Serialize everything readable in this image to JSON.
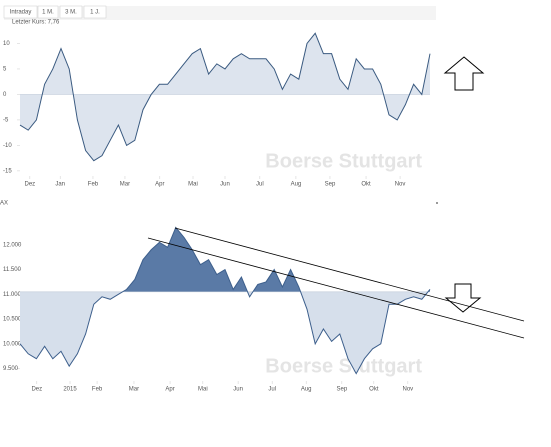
{
  "toolbar": {
    "tabs": [
      "Intraday",
      "1 M.",
      "3 M.",
      "1 J."
    ]
  },
  "chart_data": [
    {
      "type": "area",
      "subtitle": "Letzter Kurs: 7,76",
      "watermark": "Boerse Stuttgart",
      "x": [
        0,
        2,
        4,
        6,
        8,
        10,
        12,
        14,
        16,
        18,
        20,
        22,
        24,
        26,
        28,
        30,
        32,
        34,
        36,
        38,
        40,
        42,
        44,
        46,
        48,
        50,
        52,
        54,
        56,
        58,
        60,
        62,
        64,
        66,
        68,
        70,
        72,
        74,
        76,
        78,
        80,
        82,
        84,
        86,
        88,
        90,
        92,
        94,
        96,
        98,
        100
      ],
      "series": [
        {
          "color": "#3a5a80",
          "fill_above": "#dde4ee",
          "fill_below": "#dde4ee",
          "values": [
            -6,
            -7,
            -5,
            2,
            5,
            9,
            5,
            -5,
            -11,
            -13,
            -12,
            -9,
            -6,
            -10,
            -9,
            -3,
            0,
            2,
            2,
            4,
            6,
            8,
            9,
            4,
            6,
            5,
            7,
            8,
            7,
            7,
            7,
            5,
            1,
            4,
            3,
            10,
            12,
            8,
            8,
            3,
            1,
            7,
            5,
            5,
            2,
            -4,
            -5,
            -2,
            2,
            0,
            8
          ]
        }
      ],
      "baseline": 0,
      "xlim": [
        0,
        100
      ],
      "xticks": [
        {
          "value": 2.4,
          "label": "Dez"
        },
        {
          "value": 9.8,
          "label": "Jan"
        },
        {
          "value": 17.8,
          "label": "Feb"
        },
        {
          "value": 25.6,
          "label": "Mar"
        },
        {
          "value": 34.1,
          "label": "Apr"
        },
        {
          "value": 42.2,
          "label": "Mai"
        },
        {
          "value": 50,
          "label": "Jun"
        },
        {
          "value": 58.5,
          "label": "Jul"
        },
        {
          "value": 67.3,
          "label": "Aug"
        },
        {
          "value": 75.6,
          "label": "Sep"
        },
        {
          "value": 84.4,
          "label": "Okt"
        },
        {
          "value": 92.7,
          "label": "Nov"
        }
      ],
      "ylim": [
        -16,
        15
      ],
      "yticks": [
        -15,
        -10,
        -5,
        0,
        5,
        10
      ]
    },
    {
      "type": "area",
      "title": "AX",
      "watermark": "Boerse Stuttgart",
      "x": [
        0,
        2,
        4,
        6,
        8,
        10,
        12,
        14,
        16,
        18,
        20,
        22,
        24,
        26,
        28,
        30,
        32,
        34,
        36,
        38,
        40,
        42,
        44,
        46,
        48,
        50,
        52,
        54,
        56,
        58,
        60,
        62,
        64,
        66,
        68,
        70,
        72,
        74,
        76,
        78,
        80,
        82,
        84,
        86,
        88,
        90,
        92,
        94,
        96,
        98,
        100
      ],
      "series": [
        {
          "color": "#3d5f8c",
          "fill_above": "#5a7aa6",
          "fill_below": "#d6dfeb",
          "values": [
            10000,
            9800,
            9700,
            9950,
            9700,
            9850,
            9550,
            9800,
            10200,
            10800,
            10950,
            10900,
            11000,
            11100,
            11300,
            11700,
            11900,
            12050,
            11950,
            12350,
            12150,
            11900,
            11600,
            11700,
            11400,
            11500,
            11100,
            11350,
            10950,
            11200,
            11250,
            11500,
            11150,
            11500,
            11150,
            10700,
            10000,
            10300,
            10050,
            10200,
            9700,
            9400,
            9700,
            9900,
            10000,
            10800,
            10800,
            10900,
            10950,
            10900,
            11100
          ]
        }
      ],
      "baseline": 11050,
      "xlim": [
        0,
        100
      ],
      "xticks": [
        {
          "value": 4.1,
          "label": "Dez"
        },
        {
          "value": 12.2,
          "label": "2015"
        },
        {
          "value": 18.8,
          "label": "Feb"
        },
        {
          "value": 27.8,
          "label": "Mar"
        },
        {
          "value": 36.6,
          "label": "Apr"
        },
        {
          "value": 44.6,
          "label": "Mai"
        },
        {
          "value": 53.2,
          "label": "Jun"
        },
        {
          "value": 61.5,
          "label": "Jul"
        },
        {
          "value": 69.8,
          "label": "Aug"
        },
        {
          "value": 78.5,
          "label": "Sep"
        },
        {
          "value": 86.3,
          "label": "Okt"
        },
        {
          "value": 94.6,
          "label": "Nov"
        }
      ],
      "ylim": [
        9250,
        12400
      ],
      "yticks": [
        {
          "value": 9500,
          "label": "9.500"
        },
        {
          "value": 10000,
          "label": "10.000"
        },
        {
          "value": 10500,
          "label": "10.500"
        },
        {
          "value": 11000,
          "label": "11.000"
        },
        {
          "value": 11500,
          "label": "11.500"
        },
        {
          "value": 12000,
          "label": "12.000"
        }
      ]
    }
  ]
}
